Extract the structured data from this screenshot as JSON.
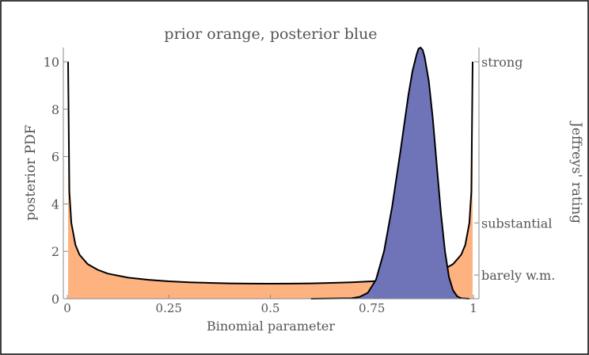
{
  "chart_data": {
    "type": "area",
    "title": "prior orange, posterior blue",
    "xlabel": "Binomial parameter",
    "ylabel": "posterior PDF",
    "y2label": "Jeffreys' rating",
    "xlim": [
      0,
      1
    ],
    "ylim": [
      0,
      10.6
    ],
    "x_ticks": [
      0,
      0.25,
      0.5,
      0.75,
      1
    ],
    "x_tick_labels": [
      "0",
      "0.25",
      "0.5",
      "0.75",
      "1"
    ],
    "y_ticks": [
      0,
      2,
      4,
      6,
      8,
      10
    ],
    "y_tick_labels": [
      "0",
      "2",
      "4",
      "6",
      "8",
      "10"
    ],
    "y2_ticks": [
      {
        "value": 10,
        "label": "strong"
      },
      {
        "value": 3.2,
        "label": "substantial"
      },
      {
        "value": 1.0,
        "label": "barely w.m."
      }
    ],
    "series": [
      {
        "color": "#fdb27f",
        "x": [
          0.002,
          0.005,
          0.01,
          0.02,
          0.03,
          0.05,
          0.075,
          0.1,
          0.15,
          0.2,
          0.25,
          0.3,
          0.35,
          0.4,
          0.45,
          0.5,
          0.55,
          0.6,
          0.65,
          0.7,
          0.75,
          0.8,
          0.85,
          0.9,
          0.925,
          0.95,
          0.97,
          0.98,
          0.99,
          0.995,
          0.998
        ],
        "y": [
          10.0,
          4.52,
          3.2,
          2.27,
          1.86,
          1.46,
          1.22,
          1.06,
          0.89,
          0.8,
          0.735,
          0.695,
          0.668,
          0.65,
          0.64,
          0.637,
          0.64,
          0.65,
          0.668,
          0.695,
          0.735,
          0.8,
          0.89,
          1.06,
          1.22,
          1.46,
          1.86,
          2.27,
          3.2,
          4.52,
          10.0
        ]
      },
      {
        "color": "#6f73b8",
        "x": [
          0.6,
          0.7,
          0.72,
          0.74,
          0.76,
          0.78,
          0.8,
          0.82,
          0.84,
          0.85,
          0.86,
          0.865,
          0.87,
          0.875,
          0.88,
          0.89,
          0.9,
          0.91,
          0.92,
          0.93,
          0.94,
          0.95,
          0.96,
          0.97,
          0.99
        ],
        "y": [
          0.0,
          0.02,
          0.08,
          0.25,
          0.8,
          2.0,
          3.9,
          6.2,
          8.6,
          9.6,
          10.3,
          10.55,
          10.6,
          10.5,
          10.2,
          9.2,
          7.6,
          5.6,
          3.6,
          2.0,
          0.9,
          0.35,
          0.1,
          0.02,
          0.0
        ]
      }
    ]
  }
}
